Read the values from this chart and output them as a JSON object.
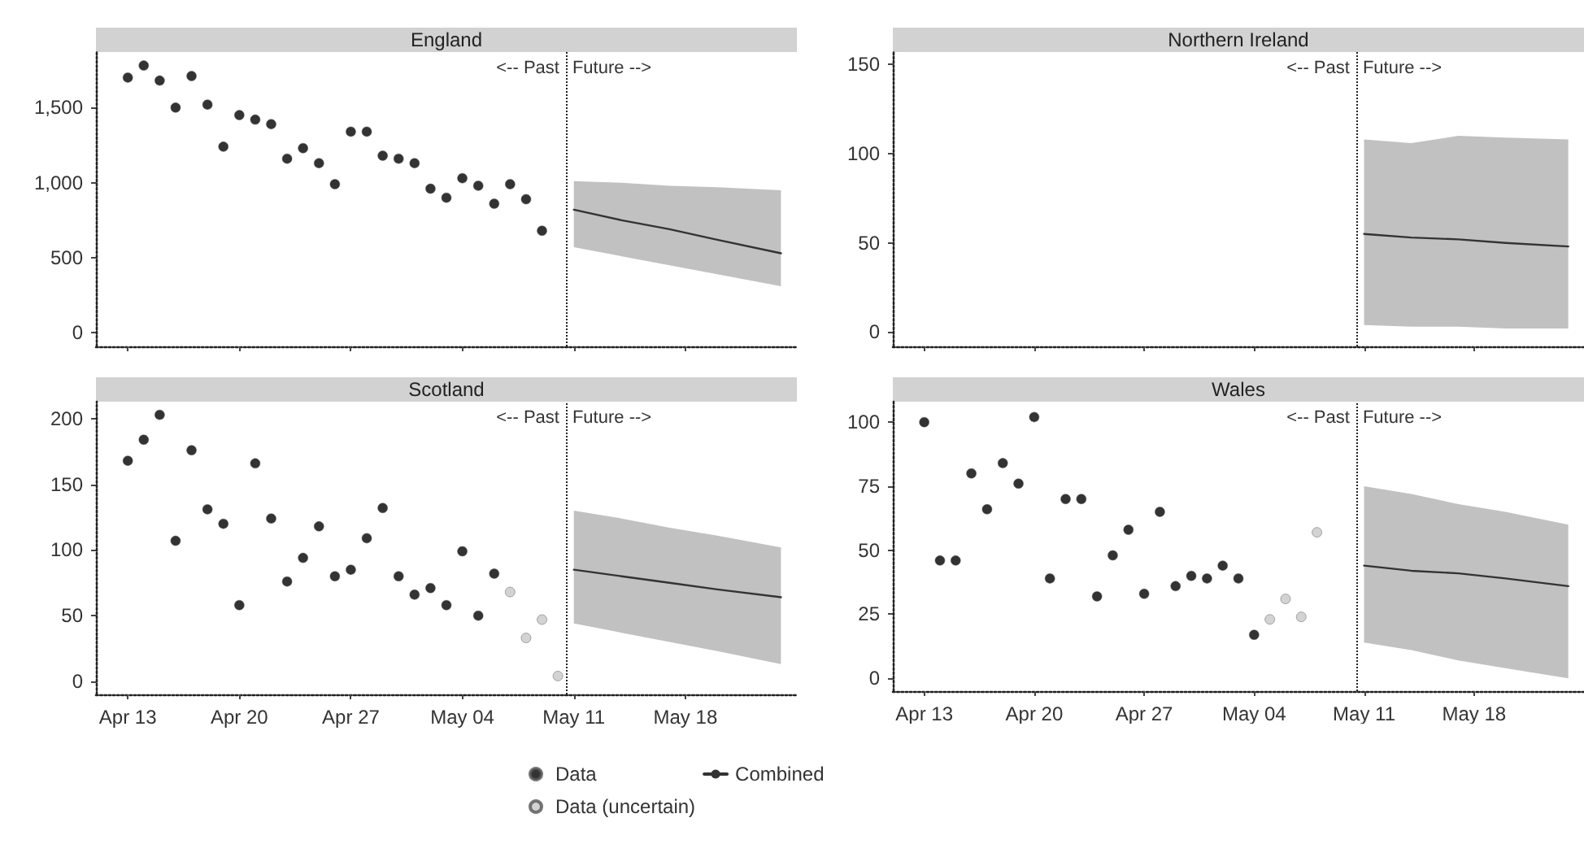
{
  "chart_data": [
    {
      "type": "scatter",
      "title": "England",
      "xlim": [
        "--04-11",
        "--05-25"
      ],
      "ylim": [
        -90,
        1870
      ],
      "yticks": [
        0,
        500,
        {
          "value": 1000,
          "label": "1,000"
        },
        {
          "value": 1500,
          "label": "1,500"
        }
      ],
      "tick_labels": "y",
      "xticks": [
        {
          "value": "--04-13",
          "label": null
        },
        {
          "value": "--04-20",
          "label": null
        },
        {
          "value": "--04-27",
          "label": null
        },
        {
          "value": "--05-04",
          "label": null
        },
        {
          "value": "--05-11",
          "label": null
        },
        {
          "value": "--05-18",
          "label": null
        }
      ],
      "series": [
        {
          "color": "#000000",
          "marker": "circle",
          "x": [
            "--04-13",
            "--04-14",
            "--04-15",
            "--04-16",
            "--04-17",
            "--04-18",
            "--04-19",
            "--04-20",
            "--04-21",
            "--04-22",
            "--04-23",
            "--04-24",
            "--04-25",
            "--04-26",
            "--04-27",
            "--04-28",
            "--04-29",
            "--04-30",
            "--05-01",
            "--05-02",
            "--05-03",
            "--05-04",
            "--05-05",
            "--05-06",
            "--05-07",
            "--05-08",
            "--05-09"
          ],
          "values": [
            1700,
            1780,
            1680,
            1500,
            1710,
            1520,
            1240,
            1450,
            1420,
            1390,
            1160,
            1230,
            1130,
            990,
            1340,
            1340,
            1180,
            1160,
            1130,
            960,
            900,
            1030,
            980,
            860,
            990,
            890,
            680
          ]
        },
        {
          "type": "line",
          "color": "#333333",
          "x": [
            "--05-11",
            "--05-14",
            "--05-17",
            "--05-20",
            "--05-24"
          ],
          "values": [
            820,
            750,
            690,
            620,
            530
          ],
          "lower": [
            570,
            510,
            450,
            390,
            310
          ],
          "upper": [
            1010,
            1000,
            980,
            970,
            950
          ]
        }
      ],
      "ref_lines": [
        {
          "axis": "x",
          "value": "--05-10T12:00",
          "line_style": "dotted"
        }
      ],
      "annotations": [
        "<-- Past",
        "Future -->"
      ]
    },
    {
      "type": "line",
      "title": "Northern Ireland",
      "xlim": [
        "--04-11",
        "--05-25"
      ],
      "ylim": [
        -8,
        157
      ],
      "yticks": [
        0,
        50,
        100,
        150
      ],
      "tick_labels": "y",
      "xticks": [
        {
          "value": "--04-13",
          "label": null
        },
        {
          "value": "--04-20",
          "label": null
        },
        {
          "value": "--04-27",
          "label": null
        },
        {
          "value": "--05-04",
          "label": null
        },
        {
          "value": "--05-11",
          "label": null
        },
        {
          "value": "--05-18",
          "label": null
        }
      ],
      "series": [
        {
          "color": "#333333",
          "x": [
            "--05-11",
            "--05-14",
            "--05-17",
            "--05-20",
            "--05-24"
          ],
          "values": [
            55,
            53,
            52,
            50,
            48
          ],
          "lower": [
            4,
            3,
            3,
            2,
            2
          ],
          "upper": [
            108,
            106,
            110,
            109,
            108
          ]
        }
      ],
      "ref_lines": [
        {
          "axis": "x",
          "value": "--05-10T12:00",
          "line_style": "dotted"
        }
      ],
      "annotations": [
        "<-- Past",
        "Future -->"
      ]
    },
    {
      "type": "scatter",
      "title": "Scotland",
      "legend": "bottom",
      "xlim": [
        "--04-11",
        "--05-25"
      ],
      "ylim": [
        -10,
        213
      ],
      "yticks": [
        0,
        50,
        100,
        150,
        200
      ],
      "xticks": [
        {
          "value": "--04-13",
          "label": "Apr 13"
        },
        {
          "value": "--04-20",
          "label": "Apr 20"
        },
        {
          "value": "--04-27",
          "label": "Apr 27"
        },
        {
          "value": "--05-04",
          "label": "May 04"
        },
        {
          "value": "--05-11",
          "label": "May 11"
        },
        {
          "value": "--05-18",
          "label": "May 18"
        }
      ],
      "series": [
        {
          "name": "Data",
          "color": "#000000",
          "marker": "circle",
          "x": [
            "--04-13",
            "--04-14",
            "--04-15",
            "--04-16",
            "--04-17",
            "--04-18",
            "--04-19",
            "--04-20",
            "--04-21",
            "--04-22",
            "--04-23",
            "--04-24",
            "--04-25",
            "--04-26",
            "--04-27",
            "--04-28",
            "--04-29",
            "--04-30",
            "--05-01",
            "--05-02",
            "--05-03",
            "--05-04",
            "--05-05",
            "--05-06"
          ],
          "values": [
            168,
            184,
            203,
            107,
            176,
            131,
            120,
            58,
            166,
            124,
            76,
            94,
            118,
            80,
            85,
            109,
            132,
            80,
            66,
            71,
            58,
            99,
            50,
            82
          ]
        },
        {
          "name": "Data (uncertain)",
          "color": "#c8c8c8",
          "marker": "circle",
          "x": [
            "--05-07",
            "--05-08",
            "--05-09",
            "--05-10"
          ],
          "values": [
            68,
            33,
            47,
            4
          ]
        },
        {
          "name": "Combined",
          "type": "line",
          "color": "#333333",
          "x": [
            "--05-11",
            "--05-14",
            "--05-17",
            "--05-20",
            "--05-24"
          ],
          "values": [
            85,
            80,
            75,
            70,
            64
          ],
          "lower": [
            44,
            37,
            30,
            23,
            13
          ],
          "upper": [
            130,
            124,
            117,
            111,
            102
          ]
        }
      ],
      "ref_lines": [
        {
          "axis": "x",
          "value": "--05-10T12:00",
          "line_style": "dotted"
        }
      ],
      "annotations": [
        "<-- Past",
        "Future -->"
      ]
    },
    {
      "type": "scatter",
      "title": "Wales",
      "xlim": [
        "--04-11",
        "--05-25"
      ],
      "ylim": [
        -5,
        108
      ],
      "yticks": [
        0,
        25,
        50,
        75,
        100
      ],
      "xticks": [
        {
          "value": "--04-13",
          "label": "Apr 13"
        },
        {
          "value": "--04-20",
          "label": "Apr 20"
        },
        {
          "value": "--04-27",
          "label": "Apr 27"
        },
        {
          "value": "--05-04",
          "label": "May 04"
        },
        {
          "value": "--05-11",
          "label": "May 11"
        },
        {
          "value": "--05-18",
          "label": "May 18"
        }
      ],
      "series": [
        {
          "color": "#000000",
          "marker": "circle",
          "x": [
            "--04-13",
            "--04-14",
            "--04-15",
            "--04-16",
            "--04-17",
            "--04-18",
            "--04-19",
            "--04-20",
            "--04-21",
            "--04-22",
            "--04-23",
            "--04-24",
            "--04-25",
            "--04-26",
            "--04-27",
            "--04-28",
            "--04-29",
            "--04-30",
            "--05-01",
            "--05-02",
            "--05-03",
            "--05-04"
          ],
          "values": [
            100,
            46,
            46,
            80,
            66,
            84,
            76,
            102,
            39,
            70,
            70,
            32,
            48,
            58,
            33,
            65,
            36,
            40,
            39,
            44,
            39,
            17
          ]
        },
        {
          "color": "#c8c8c8",
          "marker": "circle",
          "x": [
            "--05-05",
            "--05-06",
            "--05-07",
            "--05-08"
          ],
          "values": [
            23,
            31,
            24,
            57
          ]
        },
        {
          "type": "line",
          "color": "#333333",
          "x": [
            "--05-11",
            "--05-14",
            "--05-17",
            "--05-20",
            "--05-24"
          ],
          "values": [
            44,
            42,
            41,
            39,
            36
          ],
          "lower": [
            14,
            11,
            7,
            4,
            0
          ],
          "upper": [
            75,
            72,
            68,
            65,
            60
          ]
        }
      ],
      "ref_lines": [
        {
          "axis": "x",
          "value": "--05-10T12:00",
          "line_style": "dotted"
        }
      ],
      "annotations": [
        "<-- Past",
        "Future -->"
      ]
    }
  ]
}
